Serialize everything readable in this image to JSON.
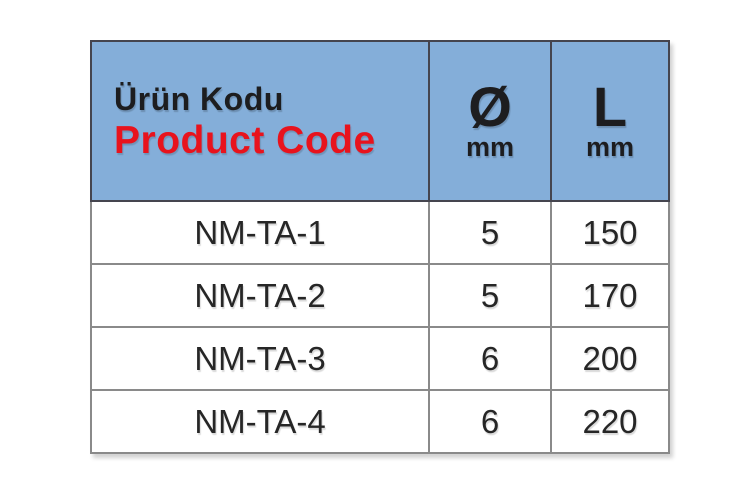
{
  "table": {
    "header": {
      "product_code_tr": "Ürün Kodu",
      "product_code_en": "Product Code",
      "diameter_symbol": "Ø",
      "diameter_unit": "mm",
      "length_symbol": "L",
      "length_unit": "mm"
    },
    "rows": [
      {
        "code": "NM-TA-1",
        "diameter": "5",
        "length": "150"
      },
      {
        "code": "NM-TA-2",
        "diameter": "5",
        "length": "170"
      },
      {
        "code": "NM-TA-3",
        "diameter": "6",
        "length": "200"
      },
      {
        "code": "NM-TA-4",
        "diameter": "6",
        "length": "220"
      }
    ]
  },
  "colors": {
    "header_background": "#84aed9",
    "accent_red": "#e8131d",
    "header_border": "#45454f",
    "body_border": "#8a8a8a",
    "text": "#1d1d1f"
  }
}
